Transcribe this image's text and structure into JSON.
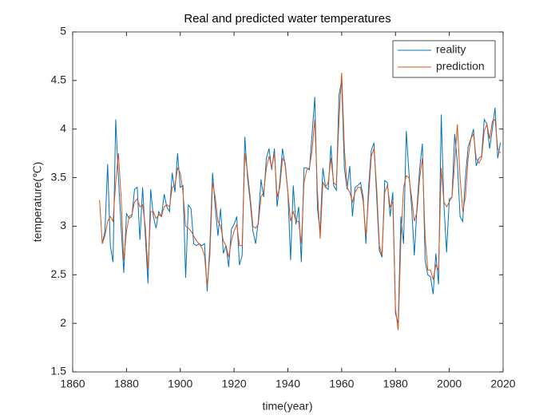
{
  "chart_data": {
    "type": "line",
    "title": "Real and predicted water temperatures",
    "xlabel": "time(year)",
    "ylabel": "temperature(℃)",
    "x": [
      1870,
      1871,
      1872,
      1873,
      1874,
      1875,
      1876,
      1877,
      1878,
      1879,
      1880,
      1881,
      1882,
      1883,
      1884,
      1885,
      1886,
      1887,
      1888,
      1889,
      1890,
      1891,
      1892,
      1893,
      1894,
      1895,
      1896,
      1897,
      1898,
      1899,
      1900,
      1901,
      1902,
      1903,
      1904,
      1905,
      1906,
      1907,
      1908,
      1909,
      1910,
      1911,
      1912,
      1913,
      1914,
      1915,
      1916,
      1917,
      1918,
      1919,
      1920,
      1921,
      1922,
      1923,
      1924,
      1925,
      1926,
      1927,
      1928,
      1929,
      1930,
      1931,
      1932,
      1933,
      1934,
      1935,
      1936,
      1937,
      1938,
      1939,
      1940,
      1941,
      1942,
      1943,
      1944,
      1945,
      1946,
      1947,
      1948,
      1949,
      1950,
      1951,
      1952,
      1953,
      1954,
      1955,
      1956,
      1957,
      1958,
      1959,
      1960,
      1961,
      1962,
      1963,
      1964,
      1965,
      1966,
      1967,
      1968,
      1969,
      1970,
      1971,
      1972,
      1973,
      1974,
      1975,
      1976,
      1977,
      1978,
      1979,
      1980,
      1981,
      1982,
      1983,
      1984,
      1985,
      1986,
      1987,
      1988,
      1989,
      1990,
      1991,
      1992,
      1993,
      1994,
      1995,
      1996,
      1997,
      1998,
      1999,
      2000,
      2001,
      2002,
      2003,
      2004,
      2005,
      2006,
      2007,
      2008,
      2009,
      2010,
      2011,
      2012,
      2013,
      2014,
      2015,
      2016,
      2017,
      2018,
      2019
    ],
    "series": [
      {
        "name": "reality",
        "color": "#0072bd",
        "values": [
          null,
          2.82,
          2.95,
          3.64,
          2.8,
          2.63,
          4.1,
          3.5,
          3.0,
          2.52,
          3.13,
          3.08,
          3.1,
          3.38,
          3.4,
          2.86,
          3.4,
          2.9,
          2.41,
          3.38,
          3.1,
          2.98,
          3.15,
          3.1,
          3.33,
          3.2,
          3.15,
          3.55,
          3.35,
          3.75,
          3.4,
          3.42,
          2.47,
          3.22,
          3.18,
          2.82,
          2.8,
          2.82,
          2.8,
          2.82,
          2.33,
          2.8,
          3.55,
          3.2,
          2.9,
          3.18,
          2.72,
          2.8,
          2.58,
          2.97,
          3.02,
          3.1,
          2.6,
          2.7,
          3.92,
          3.5,
          3.25,
          2.95,
          2.82,
          3.05,
          3.48,
          3.3,
          3.7,
          3.8,
          3.58,
          3.8,
          3.2,
          3.45,
          3.8,
          3.62,
          3.35,
          2.65,
          3.42,
          3.02,
          3.2,
          2.63,
          3.6,
          3.6,
          3.58,
          3.95,
          4.33,
          3.18,
          2.95,
          3.6,
          3.4,
          3.38,
          3.83,
          3.42,
          3.37,
          4.35,
          4.5,
          3.6,
          3.38,
          3.62,
          3.1,
          3.4,
          3.42,
          3.45,
          3.3,
          2.82,
          3.4,
          3.78,
          3.86,
          3.3,
          2.75,
          2.68,
          3.47,
          3.45,
          3.1,
          3.35,
          2.1,
          2.0,
          3.1,
          2.82,
          3.98,
          3.55,
          3.2,
          2.7,
          3.2,
          3.6,
          3.85,
          2.65,
          2.5,
          2.48,
          2.3,
          2.72,
          2.4,
          4.15,
          3.22,
          2.73,
          3.28,
          3.3,
          3.95,
          3.65,
          3.1,
          3.05,
          3.5,
          3.82,
          3.9,
          4.0,
          3.62,
          3.7,
          3.72,
          4.1,
          4.05,
          3.8,
          4.0,
          4.22,
          3.7,
          3.86
        ]
      },
      {
        "name": "prediction",
        "color": "#d95319",
        "values": [
          3.27,
          2.82,
          2.9,
          3.05,
          3.1,
          3.05,
          3.45,
          3.75,
          3.3,
          2.65,
          2.95,
          3.1,
          3.12,
          3.25,
          3.28,
          3.2,
          3.22,
          3.0,
          2.55,
          3.15,
          3.15,
          3.08,
          3.12,
          3.1,
          3.2,
          3.22,
          3.2,
          3.4,
          3.42,
          3.6,
          3.55,
          3.35,
          3.0,
          2.98,
          2.95,
          2.9,
          2.85,
          2.82,
          2.78,
          2.7,
          2.38,
          2.7,
          3.45,
          3.3,
          3.05,
          3.0,
          2.85,
          2.8,
          2.68,
          2.85,
          2.95,
          3.02,
          2.8,
          2.8,
          3.75,
          3.55,
          3.3,
          3.0,
          2.98,
          3.02,
          3.3,
          3.35,
          3.6,
          3.72,
          3.6,
          3.75,
          3.3,
          3.4,
          3.7,
          3.65,
          3.35,
          3.05,
          3.15,
          3.05,
          3.05,
          2.82,
          3.45,
          3.58,
          3.6,
          3.78,
          4.1,
          3.35,
          2.87,
          3.45,
          3.4,
          3.45,
          3.7,
          3.45,
          3.42,
          4.1,
          4.58,
          3.8,
          3.4,
          3.35,
          3.25,
          3.35,
          3.4,
          3.4,
          3.25,
          2.9,
          3.3,
          3.72,
          3.8,
          3.4,
          2.8,
          2.7,
          3.35,
          3.42,
          3.2,
          3.25,
          2.15,
          1.93,
          2.85,
          3.4,
          3.52,
          3.5,
          3.3,
          3.05,
          3.15,
          3.5,
          3.7,
          2.9,
          2.55,
          2.55,
          2.45,
          2.6,
          2.55,
          3.6,
          3.25,
          3.2,
          3.25,
          3.3,
          3.65,
          4.05,
          3.5,
          3.15,
          3.3,
          3.7,
          3.9,
          3.95,
          3.7,
          3.65,
          3.7,
          3.98,
          4.05,
          3.9,
          4.08,
          4.1,
          3.8,
          3.75
        ]
      }
    ],
    "xlim": [
      1860,
      2020
    ],
    "xticks": [
      1860,
      1880,
      1900,
      1920,
      1940,
      1960,
      1980,
      2000,
      2020
    ],
    "ylim": [
      1.5,
      5
    ],
    "yticks": [
      1.5,
      2,
      2.5,
      3,
      3.5,
      4,
      4.5,
      5
    ],
    "legend": "top-right",
    "grid": false
  }
}
